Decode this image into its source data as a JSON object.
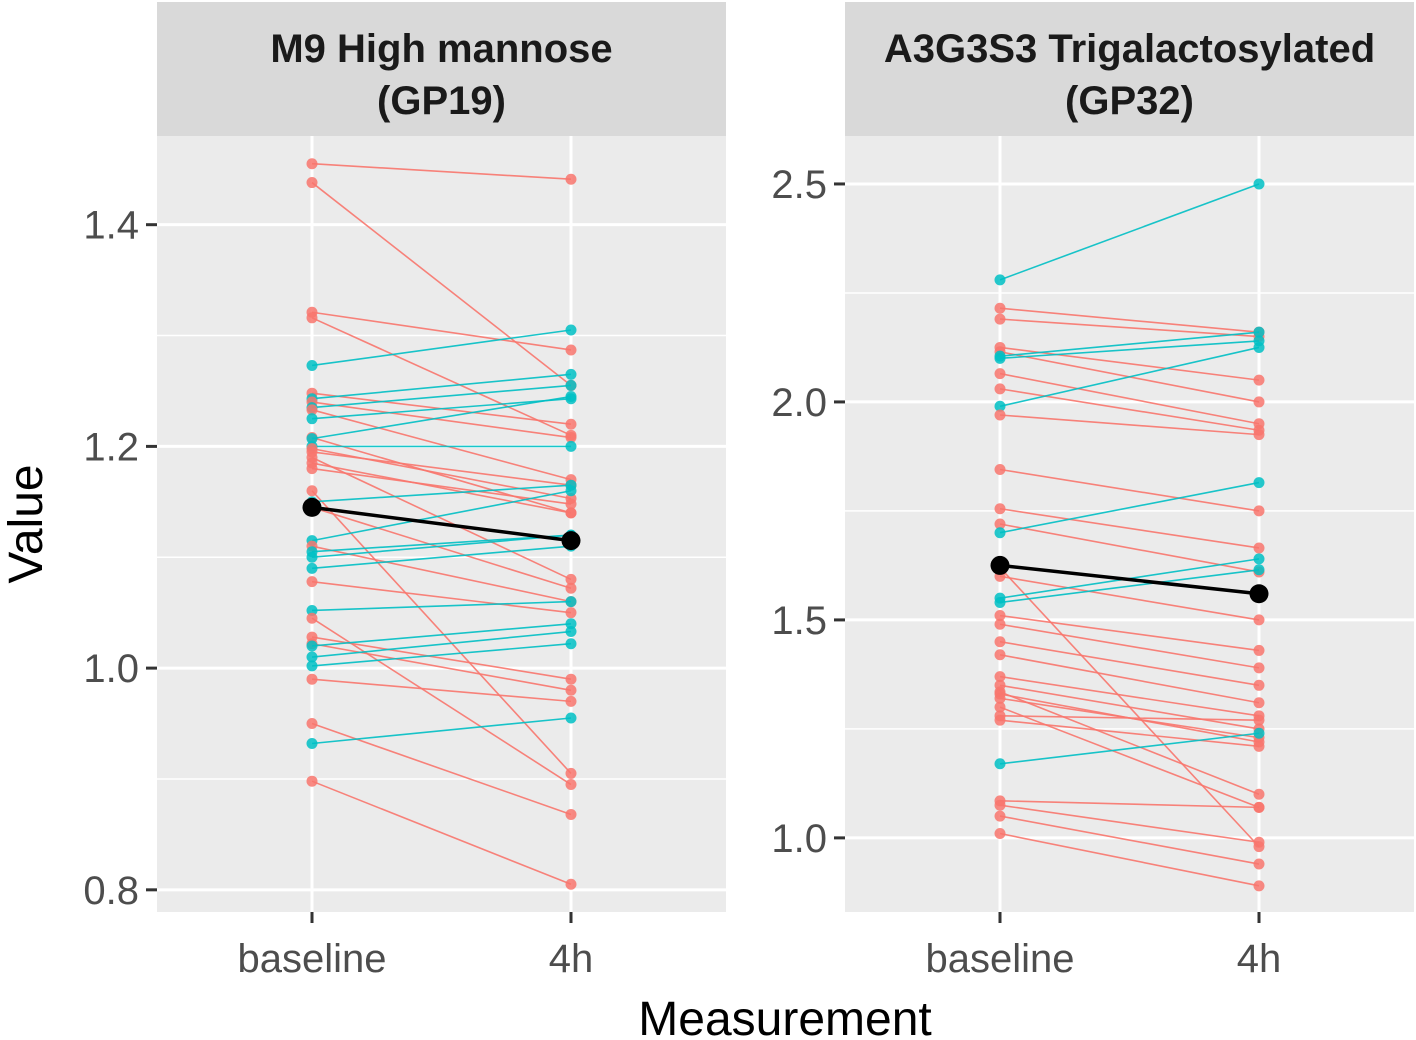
{
  "chart_data": {
    "type": "line",
    "xlabel": "Measurement",
    "ylabel": "Value",
    "categories": [
      "baseline",
      "4h"
    ],
    "colors": {
      "decrease": "#F8766D",
      "increase": "#00BFC4",
      "mean": "#000000",
      "panel_bg": "#EBEBEB",
      "strip_bg": "#D9D9D9",
      "grid": "#FFFFFF"
    },
    "panels": [
      {
        "title_line1": "M9 High mannose",
        "title_line2": "(GP19)",
        "ylim": [
          0.78,
          1.48
        ],
        "yticks": [
          0.8,
          1.0,
          1.2,
          1.4
        ],
        "ytick_labels": [
          "0.8",
          "1.0",
          "1.2",
          "1.4"
        ],
        "series": [
          {
            "group": "decrease",
            "values": [
              1.455,
              1.441
            ]
          },
          {
            "group": "decrease",
            "values": [
              1.438,
              1.255
            ]
          },
          {
            "group": "decrease",
            "values": [
              1.321,
              1.287
            ]
          },
          {
            "group": "decrease",
            "values": [
              1.316,
              1.21
            ]
          },
          {
            "group": "increase",
            "values": [
              1.273,
              1.305
            ]
          },
          {
            "group": "decrease",
            "values": [
              1.248,
              1.22
            ]
          },
          {
            "group": "increase",
            "values": [
              1.243,
              1.265
            ]
          },
          {
            "group": "decrease",
            "values": [
              1.24,
              1.208
            ]
          },
          {
            "group": "increase",
            "values": [
              1.235,
              1.255
            ]
          },
          {
            "group": "decrease",
            "values": [
              1.233,
              1.17
            ]
          },
          {
            "group": "increase",
            "values": [
              1.225,
              1.243
            ]
          },
          {
            "group": "decrease",
            "values": [
              1.208,
              1.14
            ]
          },
          {
            "group": "increase",
            "values": [
              1.207,
              1.245
            ]
          },
          {
            "group": "increase",
            "values": [
              1.2,
              1.2
            ]
          },
          {
            "group": "decrease",
            "values": [
              1.198,
              1.153
            ]
          },
          {
            "group": "decrease",
            "values": [
              1.195,
              1.165
            ]
          },
          {
            "group": "decrease",
            "values": [
              1.19,
              1.08
            ]
          },
          {
            "group": "decrease",
            "values": [
              1.185,
              1.14
            ]
          },
          {
            "group": "decrease",
            "values": [
              1.18,
              1.148
            ]
          },
          {
            "group": "decrease",
            "values": [
              1.16,
              0.905
            ]
          },
          {
            "group": "increase",
            "values": [
              1.15,
              1.165
            ]
          },
          {
            "group": "decrease",
            "values": [
              1.145,
              1.072
            ]
          },
          {
            "group": "increase",
            "values": [
              1.115,
              1.16
            ]
          },
          {
            "group": "decrease",
            "values": [
              1.11,
              1.06
            ]
          },
          {
            "group": "increase",
            "values": [
              1.105,
              1.12
            ]
          },
          {
            "group": "increase",
            "values": [
              1.1,
              1.12
            ]
          },
          {
            "group": "increase",
            "values": [
              1.09,
              1.11
            ]
          },
          {
            "group": "decrease",
            "values": [
              1.078,
              1.05
            ]
          },
          {
            "group": "increase",
            "values": [
              1.052,
              1.06
            ]
          },
          {
            "group": "decrease",
            "values": [
              1.045,
              0.895
            ]
          },
          {
            "group": "decrease",
            "values": [
              1.028,
              0.99
            ]
          },
          {
            "group": "decrease",
            "values": [
              1.022,
              0.98
            ]
          },
          {
            "group": "increase",
            "values": [
              1.02,
              1.04
            ]
          },
          {
            "group": "increase",
            "values": [
              1.01,
              1.033
            ]
          },
          {
            "group": "increase",
            "values": [
              1.002,
              1.022
            ]
          },
          {
            "group": "decrease",
            "values": [
              0.99,
              0.97
            ]
          },
          {
            "group": "decrease",
            "values": [
              0.95,
              0.868
            ]
          },
          {
            "group": "increase",
            "values": [
              0.932,
              0.955
            ]
          },
          {
            "group": "decrease",
            "values": [
              0.898,
              0.805
            ]
          }
        ],
        "mean": [
          1.145,
          1.115
        ]
      },
      {
        "title_line1": "A3G3S3 Trigalactosylated",
        "title_line2": "(GP32)",
        "ylim": [
          0.83,
          2.61
        ],
        "yticks": [
          1.0,
          1.5,
          2.0,
          2.5
        ],
        "ytick_labels": [
          "1.0",
          "1.5",
          "2.0",
          "2.5"
        ],
        "series": [
          {
            "group": "increase",
            "values": [
              2.28,
              2.5
            ]
          },
          {
            "group": "decrease",
            "values": [
              2.215,
              2.16
            ]
          },
          {
            "group": "decrease",
            "values": [
              2.19,
              2.15
            ]
          },
          {
            "group": "decrease",
            "values": [
              2.125,
              2.05
            ]
          },
          {
            "group": "decrease",
            "values": [
              2.115,
              2.0
            ]
          },
          {
            "group": "increase",
            "values": [
              2.105,
              2.16
            ]
          },
          {
            "group": "increase",
            "values": [
              2.1,
              2.14
            ]
          },
          {
            "group": "decrease",
            "values": [
              2.065,
              1.95
            ]
          },
          {
            "group": "decrease",
            "values": [
              2.03,
              1.935
            ]
          },
          {
            "group": "increase",
            "values": [
              1.99,
              2.125
            ]
          },
          {
            "group": "decrease",
            "values": [
              1.97,
              1.925
            ]
          },
          {
            "group": "decrease",
            "values": [
              1.845,
              1.75
            ]
          },
          {
            "group": "decrease",
            "values": [
              1.755,
              1.665
            ]
          },
          {
            "group": "decrease",
            "values": [
              1.72,
              1.61
            ]
          },
          {
            "group": "increase",
            "values": [
              1.7,
              1.815
            ]
          },
          {
            "group": "decrease",
            "values": [
              1.62,
              0.98
            ]
          },
          {
            "group": "decrease",
            "values": [
              1.6,
              1.5
            ]
          },
          {
            "group": "increase",
            "values": [
              1.55,
              1.64
            ]
          },
          {
            "group": "increase",
            "values": [
              1.54,
              1.615
            ]
          },
          {
            "group": "decrease",
            "values": [
              1.51,
              1.43
            ]
          },
          {
            "group": "decrease",
            "values": [
              1.49,
              1.39
            ]
          },
          {
            "group": "decrease",
            "values": [
              1.45,
              1.35
            ]
          },
          {
            "group": "decrease",
            "values": [
              1.42,
              1.31
            ]
          },
          {
            "group": "decrease",
            "values": [
              1.37,
              1.28
            ]
          },
          {
            "group": "decrease",
            "values": [
              1.35,
              1.25
            ]
          },
          {
            "group": "decrease",
            "values": [
              1.335,
              1.1
            ]
          },
          {
            "group": "decrease",
            "values": [
              1.33,
              1.22
            ]
          },
          {
            "group": "decrease",
            "values": [
              1.32,
              1.23
            ]
          },
          {
            "group": "decrease",
            "values": [
              1.3,
              1.07
            ]
          },
          {
            "group": "decrease",
            "values": [
              1.28,
              1.27
            ]
          },
          {
            "group": "decrease",
            "values": [
              1.27,
              1.21
            ]
          },
          {
            "group": "increase",
            "values": [
              1.17,
              1.24
            ]
          },
          {
            "group": "decrease",
            "values": [
              1.085,
              1.07
            ]
          },
          {
            "group": "decrease",
            "values": [
              1.075,
              0.99
            ]
          },
          {
            "group": "decrease",
            "values": [
              1.05,
              0.94
            ]
          },
          {
            "group": "decrease",
            "values": [
              1.01,
              0.89
            ]
          }
        ],
        "mean": [
          1.625,
          1.56
        ]
      }
    ]
  }
}
